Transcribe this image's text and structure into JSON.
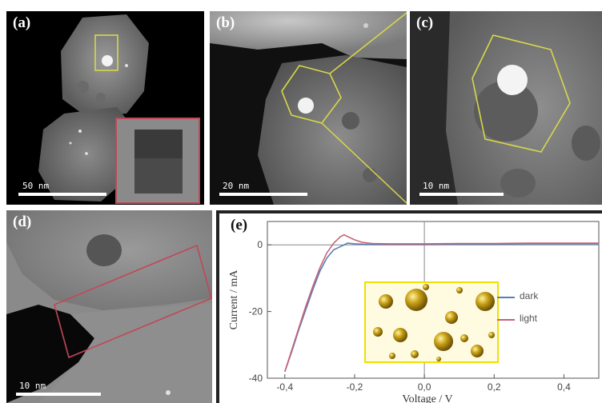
{
  "panels": {
    "a": {
      "label": "(a)",
      "scalebar": "50 nm"
    },
    "b": {
      "label": "(b)",
      "scalebar": "20 nm"
    },
    "c": {
      "label": "(c)",
      "scalebar": "10 nm"
    },
    "d": {
      "label": "(d)",
      "scalebar": "10 nm"
    },
    "e": {
      "label": "(e)"
    }
  },
  "colors": {
    "marker_yellow": "#d8d84a",
    "marker_red": "#c04858",
    "dark_series": "#5a7fb0",
    "light_series": "#c8607a",
    "gold": "#c9a218"
  },
  "chart_data": {
    "type": "line",
    "xlabel": "Voltage / V",
    "ylabel": "Current / mA",
    "xlim": [
      -0.45,
      0.5
    ],
    "ylim": [
      -40,
      7
    ],
    "xticks": [
      "-0,4",
      "-0,2",
      "0,0",
      "0,2",
      "0,4"
    ],
    "xtick_values": [
      -0.4,
      -0.2,
      0.0,
      0.2,
      0.4
    ],
    "yticks": [
      "0",
      "-20",
      "-40"
    ],
    "ytick_values": [
      0,
      -20,
      -40
    ],
    "legend_position": "right",
    "series": [
      {
        "name": "dark",
        "color": "#5a7fb0",
        "x": [
          -0.4,
          -0.38,
          -0.36,
          -0.34,
          -0.32,
          -0.3,
          -0.28,
          -0.26,
          -0.24,
          -0.22,
          -0.2,
          -0.15,
          -0.1,
          0.0,
          0.1,
          0.2,
          0.3,
          0.4,
          0.5
        ],
        "y": [
          -38,
          -32,
          -25.5,
          -19.5,
          -13.5,
          -8,
          -4,
          -1.5,
          -0.5,
          0.5,
          0.3,
          0.1,
          0.1,
          0.1,
          0.2,
          0.2,
          0.3,
          0.3,
          0.3
        ]
      },
      {
        "name": "light",
        "color": "#c8607a",
        "x": [
          -0.4,
          -0.38,
          -0.36,
          -0.34,
          -0.32,
          -0.3,
          -0.28,
          -0.26,
          -0.24,
          -0.23,
          -0.22,
          -0.2,
          -0.18,
          -0.15,
          -0.1,
          0.0,
          0.1,
          0.2,
          0.3,
          0.4,
          0.5
        ],
        "y": [
          -38,
          -31.5,
          -25,
          -18.5,
          -12.5,
          -7,
          -2.5,
          0.5,
          2.5,
          3,
          2.5,
          1.5,
          0.8,
          0.4,
          0.3,
          0.3,
          0.4,
          0.4,
          0.5,
          0.5,
          0.5
        ]
      }
    ]
  }
}
